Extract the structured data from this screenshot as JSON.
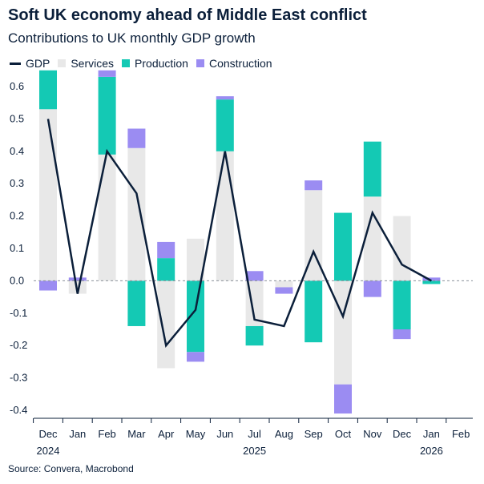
{
  "header": {
    "title": "Soft UK economy ahead of Middle East conflict",
    "subtitle": "Contributions to UK monthly GDP growth"
  },
  "source": "Source: Convera, Macrobond",
  "legend": [
    {
      "label": "GDP",
      "color": "#0b1f3a",
      "kind": "line"
    },
    {
      "label": "Services",
      "color": "#e8e8e8",
      "kind": "box"
    },
    {
      "label": "Production",
      "color": "#14c9b4",
      "kind": "box"
    },
    {
      "label": "Construction",
      "color": "#9b8cf2",
      "kind": "box"
    }
  ],
  "chart_data": {
    "type": "bar",
    "title": "Soft UK economy ahead of Middle East conflict",
    "subtitle": "Contributions to UK monthly GDP growth",
    "categories": [
      "Dec",
      "Jan",
      "Feb",
      "Mar",
      "Apr",
      "May",
      "Jun",
      "Jul",
      "Aug",
      "Sep",
      "Oct",
      "Nov",
      "Dec",
      "Jan",
      "Feb"
    ],
    "year_labels": [
      {
        "label": "2024",
        "category_index": 0
      },
      {
        "label": "2025",
        "category_index": 7
      },
      {
        "label": "2026",
        "category_index": 13
      }
    ],
    "ylim": [
      -0.4,
      0.6
    ],
    "yticks": [
      -0.4,
      -0.3,
      -0.2,
      -0.1,
      0.0,
      0.1,
      0.2,
      0.3,
      0.4,
      0.5,
      0.6
    ],
    "ytick_labels": [
      "-0.4",
      "-0.3",
      "-0.2",
      "-0.1",
      "0.0",
      "0.1",
      "0.2",
      "0.3",
      "0.4",
      "0.5",
      "0.6"
    ],
    "zero_line": "dashed",
    "series": [
      {
        "name": "Services",
        "kind": "bar",
        "color": "#e8e8e8",
        "values": [
          0.53,
          -0.04,
          0.39,
          0.41,
          -0.27,
          0.13,
          0.4,
          -0.14,
          -0.02,
          0.28,
          -0.32,
          0.26,
          0.2,
          0.0,
          null
        ]
      },
      {
        "name": "Production",
        "kind": "bar",
        "color": "#14c9b4",
        "values": [
          0.12,
          0.0,
          0.24,
          -0.14,
          0.07,
          -0.22,
          0.16,
          -0.06,
          0.0,
          -0.19,
          0.21,
          0.17,
          -0.15,
          -0.01,
          null
        ]
      },
      {
        "name": "Construction",
        "kind": "bar",
        "color": "#9b8cf2",
        "values": [
          -0.03,
          0.01,
          0.02,
          0.06,
          0.05,
          -0.03,
          0.01,
          0.03,
          -0.02,
          0.03,
          -0.09,
          -0.05,
          -0.03,
          0.01,
          null
        ]
      },
      {
        "name": "GDP",
        "kind": "line",
        "color": "#0b1f3a",
        "values": [
          0.5,
          -0.04,
          0.4,
          0.27,
          -0.2,
          -0.09,
          0.4,
          -0.12,
          -0.14,
          0.09,
          -0.11,
          0.21,
          0.05,
          0.0,
          null
        ]
      }
    ]
  }
}
